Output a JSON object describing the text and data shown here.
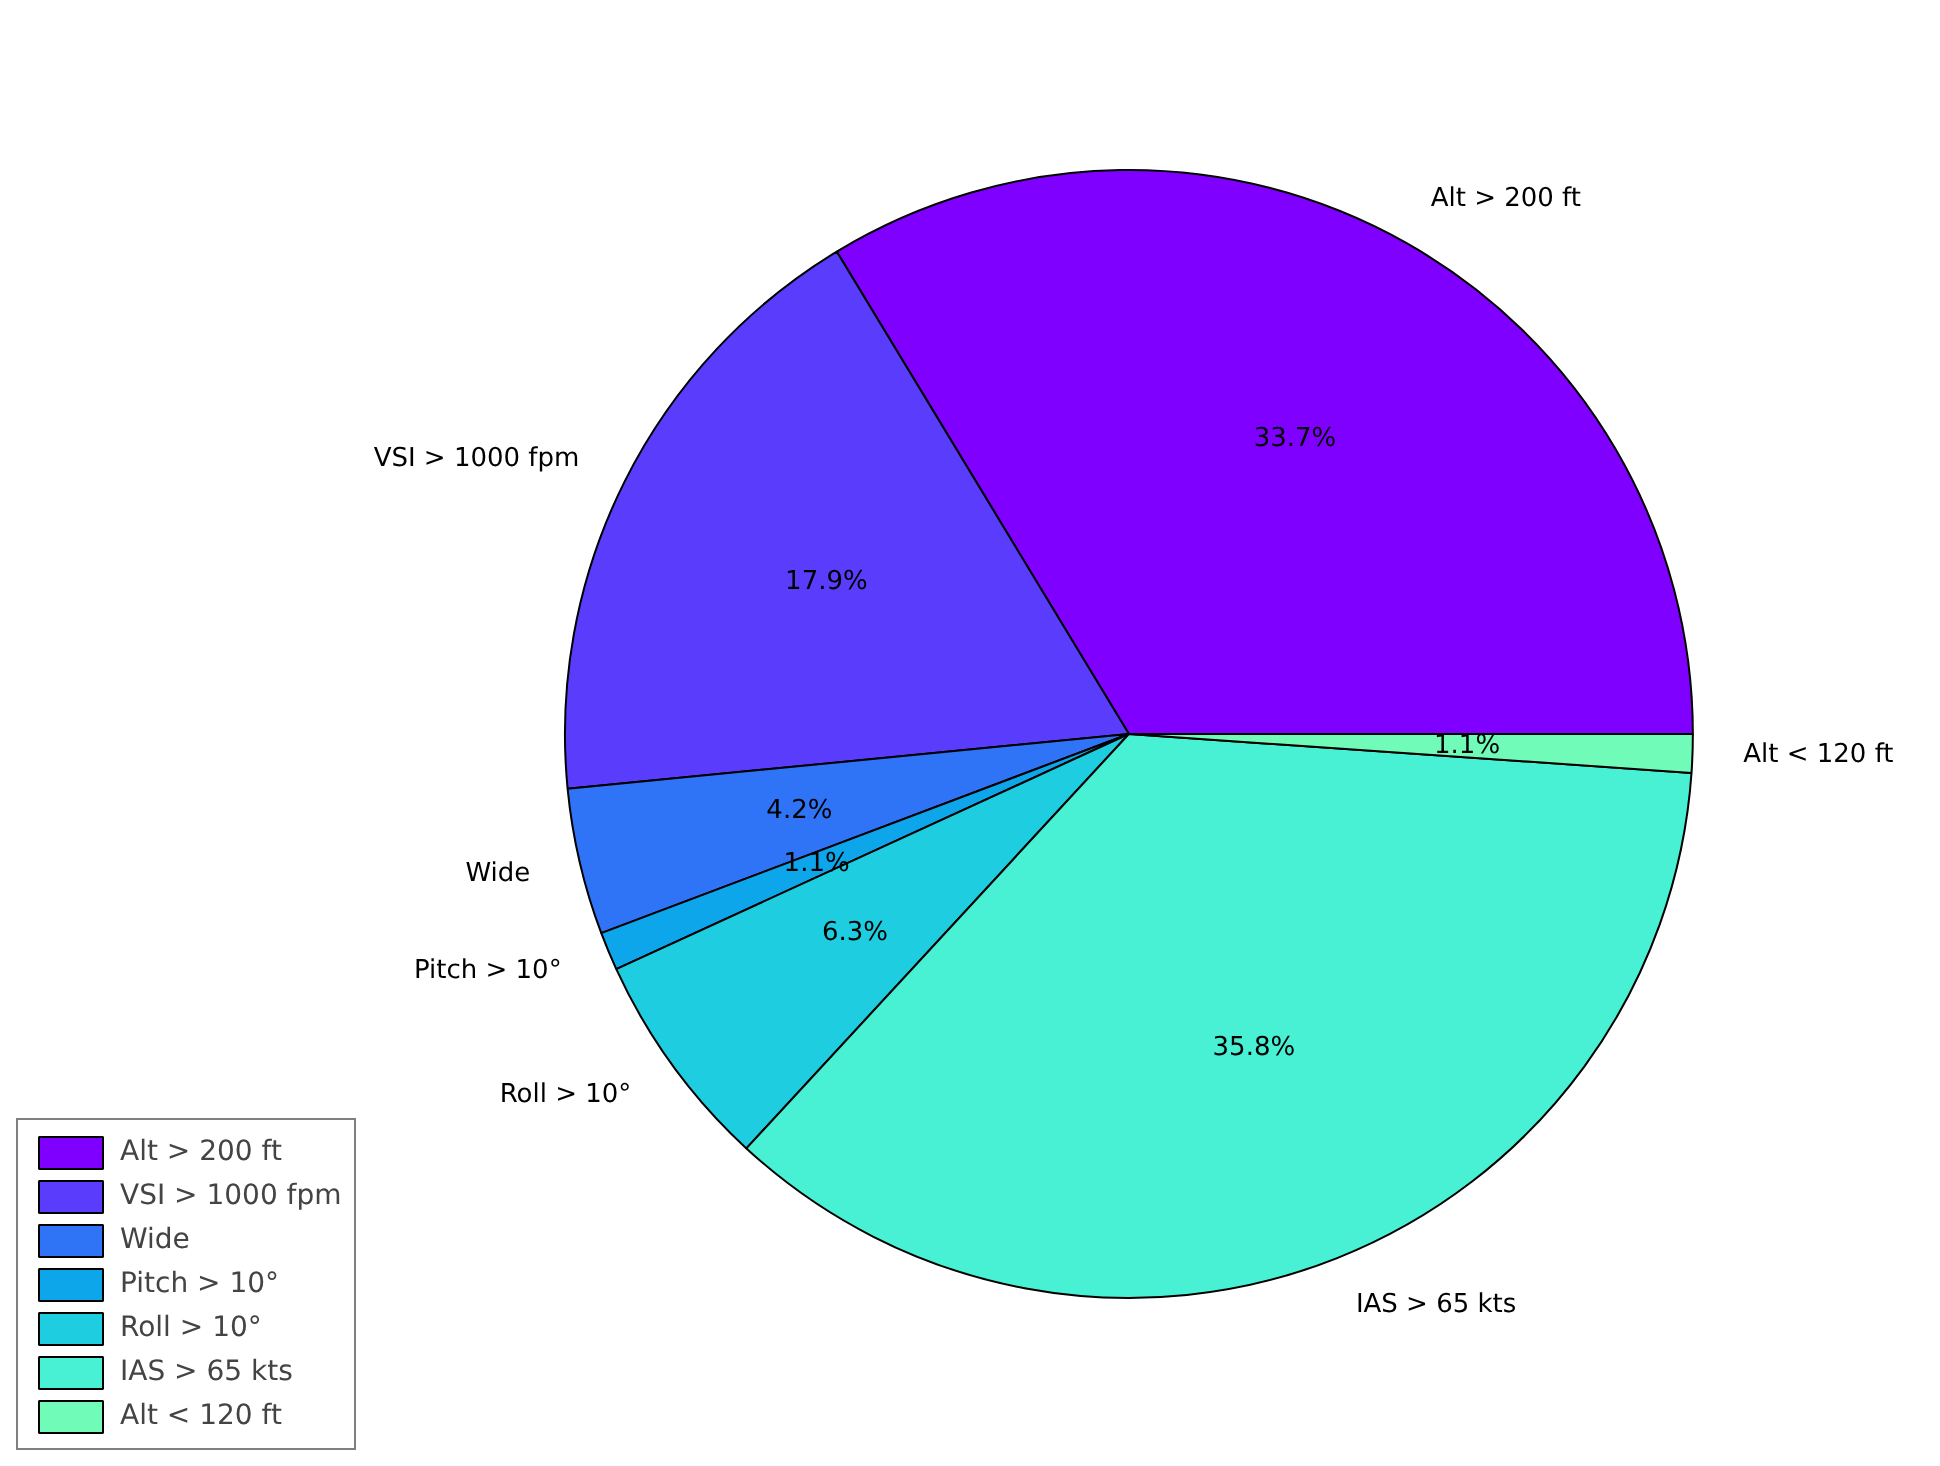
{
  "chart_data": {
    "type": "pie",
    "categories": [
      "Alt > 200 ft",
      "VSI > 1000 fpm",
      "Wide",
      "Pitch > 10°",
      "Roll > 10°",
      "IAS > 65 kts",
      "Alt < 120 ft"
    ],
    "values": [
      33.7,
      17.9,
      4.2,
      1.1,
      6.3,
      35.8,
      1.1
    ],
    "value_labels": [
      "33.7%",
      "17.9%",
      "4.2%",
      "1.1%",
      "6.3%",
      "35.8%",
      "1.1%"
    ],
    "colors": [
      "#8000ff",
      "#5a3cfd",
      "#2f74f6",
      "#0ea6ea",
      "#1ecde0",
      "#48f0d4",
      "#70fbb8"
    ],
    "legend": "bottom left"
  }
}
